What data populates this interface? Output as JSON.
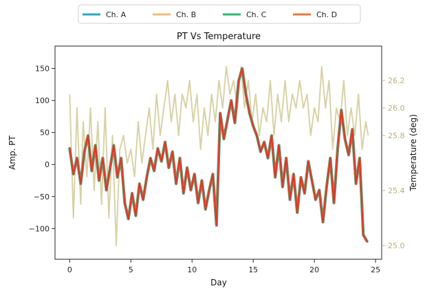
{
  "chart_data": {
    "type": "line",
    "title": "PT Vs Temperature",
    "xlabel": "Day",
    "ylabel": "Amp. PT",
    "y2label": "Temperature (deg)",
    "xlim": [
      -1.2,
      25.5
    ],
    "ylim": [
      -148,
      185
    ],
    "y2lim": [
      24.9,
      26.45
    ],
    "xticks": [
      0,
      5,
      10,
      15,
      20,
      25
    ],
    "yticks": [
      -100,
      -50,
      0,
      50,
      100,
      150
    ],
    "y2ticks": [
      25.0,
      25.4,
      25.8,
      26.0,
      26.2
    ],
    "y2ticklabels": [
      "25.0",
      "25.4",
      "25.8",
      "26.0",
      "26.2"
    ],
    "grid": false,
    "legend_position": "top-center-outside",
    "legend": [
      {
        "label": "Ch. A",
        "color": "#2aa7c6"
      },
      {
        "label": "Ch. B",
        "color": "#f0bc78"
      },
      {
        "label": "Ch. C",
        "color": "#2bb573"
      },
      {
        "label": "Ch. D",
        "color": "#e07a3f"
      }
    ],
    "temperature_color": "#d8d2a6",
    "amplitude_color": "#d93a2a",
    "y2_axis_color": "#b7b07a",
    "temperature_series": {
      "name": "Temperature",
      "x": [
        0.0,
        0.3,
        0.6,
        0.9,
        1.1,
        1.4,
        1.7,
        2.0,
        2.3,
        2.6,
        2.9,
        3.2,
        3.5,
        3.8,
        4.1,
        4.4,
        4.7,
        5.0,
        5.3,
        5.6,
        5.9,
        6.2,
        6.5,
        6.8,
        7.1,
        7.4,
        7.7,
        8.0,
        8.3,
        8.6,
        8.9,
        9.2,
        9.5,
        9.8,
        10.1,
        10.4,
        10.7,
        11.0,
        11.3,
        11.6,
        11.9,
        12.2,
        12.5,
        12.8,
        13.1,
        13.4,
        13.7,
        14.0,
        14.3,
        14.6,
        14.9,
        15.2,
        15.5,
        15.8,
        16.1,
        16.4,
        16.7,
        17.0,
        17.3,
        17.6,
        17.9,
        18.2,
        18.5,
        18.8,
        19.1,
        19.4,
        19.7,
        20.0,
        20.3,
        20.6,
        20.9,
        21.2,
        21.5,
        21.8,
        22.1,
        22.4,
        22.7,
        23.0,
        23.3,
        23.6,
        23.9,
        24.2,
        24.4
      ],
      "y": [
        26.1,
        25.2,
        26.0,
        25.3,
        25.9,
        25.5,
        26.0,
        25.4,
        25.9,
        25.3,
        26.0,
        25.2,
        25.8,
        25.0,
        25.7,
        25.8,
        25.6,
        25.7,
        25.5,
        25.9,
        25.6,
        25.8,
        26.0,
        25.7,
        26.1,
        25.8,
        26.0,
        26.2,
        25.9,
        26.1,
        25.8,
        26.1,
        26.0,
        26.2,
        25.9,
        26.1,
        25.7,
        26.0,
        25.8,
        26.1,
        25.9,
        26.2,
        26.0,
        26.3,
        26.1,
        26.2,
        26.0,
        26.3,
        26.0,
        26.2,
        25.9,
        26.1,
        25.8,
        26.0,
        25.9,
        26.2,
        25.8,
        26.1,
        25.9,
        26.2,
        25.9,
        26.1,
        26.0,
        26.2,
        26.0,
        26.1,
        25.8,
        26.0,
        25.9,
        26.3,
        26.0,
        26.2,
        25.7,
        26.0,
        25.9,
        26.2,
        25.8,
        26.0,
        25.8,
        26.1,
        25.7,
        25.9,
        25.8
      ]
    },
    "series": [
      {
        "name": "Ch. A",
        "x": [
          0.0,
          0.3,
          0.6,
          0.9,
          1.2,
          1.5,
          1.8,
          2.1,
          2.4,
          2.7,
          3.0,
          3.3,
          3.6,
          3.9,
          4.2,
          4.5,
          4.8,
          5.1,
          5.4,
          5.7,
          6.0,
          6.3,
          6.6,
          6.9,
          7.2,
          7.5,
          7.8,
          8.1,
          8.4,
          8.7,
          9.0,
          9.3,
          9.6,
          9.9,
          10.2,
          10.5,
          10.8,
          11.1,
          11.4,
          11.7,
          12.0,
          12.3,
          12.6,
          12.9,
          13.2,
          13.5,
          13.8,
          14.1,
          14.4,
          14.7,
          15.0,
          15.3,
          15.6,
          15.9,
          16.2,
          16.5,
          16.8,
          17.1,
          17.4,
          17.7,
          18.0,
          18.3,
          18.6,
          18.9,
          19.2,
          19.5,
          19.8,
          20.1,
          20.4,
          20.7,
          21.0,
          21.3,
          21.6,
          21.9,
          22.2,
          22.5,
          22.8,
          23.1,
          23.4,
          23.7,
          24.0,
          24.3
        ],
        "values": [
          25,
          -15,
          10,
          -30,
          20,
          45,
          -10,
          30,
          -25,
          10,
          -40,
          -5,
          30,
          -20,
          10,
          -60,
          -85,
          -45,
          -80,
          -30,
          -55,
          -20,
          10,
          -10,
          25,
          5,
          35,
          -5,
          20,
          -30,
          10,
          -45,
          -5,
          -40,
          -15,
          -60,
          -25,
          -70,
          -40,
          -15,
          -95,
          80,
          40,
          70,
          100,
          65,
          130,
          150,
          110,
          80,
          60,
          45,
          20,
          35,
          10,
          45,
          -20,
          30,
          -35,
          10,
          -55,
          -15,
          -75,
          -20,
          -45,
          5,
          -25,
          -55,
          -40,
          -90,
          -35,
          10,
          -60,
          25,
          85,
          40,
          15,
          55,
          -30,
          10,
          -110,
          -120
        ]
      }
    ]
  }
}
